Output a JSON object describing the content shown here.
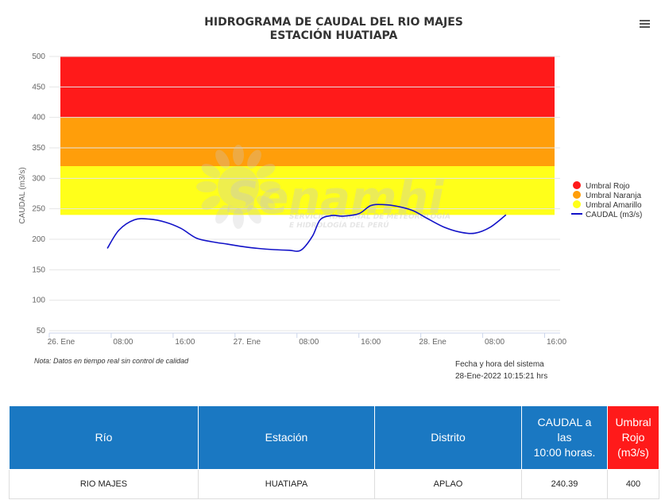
{
  "chart_data": {
    "type": "line",
    "title": "HIDROGRAMA DE CAUDAL DEL RIO MAJES",
    "subtitle": "ESTACIÓN HUATIAPA",
    "ylabel": "CAUDAL (m3/s)",
    "xlabel": "",
    "ylim": [
      50,
      500
    ],
    "yticks": [
      50,
      100,
      150,
      200,
      250,
      300,
      350,
      400,
      450,
      500
    ],
    "xlim": [
      0,
      66
    ],
    "xticks": [
      {
        "label": "26. Ene",
        "hour": 0
      },
      {
        "label": "08:00",
        "hour": 8
      },
      {
        "label": "16:00",
        "hour": 16
      },
      {
        "label": "27. Ene",
        "hour": 24
      },
      {
        "label": "08:00",
        "hour": 32
      },
      {
        "label": "16:00",
        "hour": 40
      },
      {
        "label": "28. Ene",
        "hour": 48
      },
      {
        "label": "08:00",
        "hour": 56
      },
      {
        "label": "16:00",
        "hour": 64
      }
    ],
    "bands": [
      {
        "name": "Umbral Rojo",
        "from": 400,
        "to": 500,
        "color": "#ff1a1a"
      },
      {
        "name": "Umbral Naranja",
        "from": 320,
        "to": 400,
        "color": "#ff9e0a"
      },
      {
        "name": "Umbral Amarillo",
        "from": 240,
        "to": 320,
        "color": "#ffff1a"
      }
    ],
    "series": [
      {
        "name": "CAUDAL (m3/s)",
        "color": "#1212c8",
        "points": [
          [
            7.5,
            185
          ],
          [
            9,
            215
          ],
          [
            11,
            232
          ],
          [
            13,
            233
          ],
          [
            15,
            228
          ],
          [
            17,
            218
          ],
          [
            19,
            202
          ],
          [
            21,
            196
          ],
          [
            23,
            192
          ],
          [
            25,
            188
          ],
          [
            27,
            185
          ],
          [
            29,
            183
          ],
          [
            31,
            182
          ],
          [
            32.5,
            182
          ],
          [
            34,
            205
          ],
          [
            35,
            232
          ],
          [
            36.5,
            239
          ],
          [
            38,
            238
          ],
          [
            40,
            242
          ],
          [
            41.5,
            255
          ],
          [
            43,
            257
          ],
          [
            45,
            254
          ],
          [
            47,
            247
          ],
          [
            49,
            233
          ],
          [
            51,
            220
          ],
          [
            53,
            212
          ],
          [
            55,
            210
          ],
          [
            57,
            220
          ],
          [
            59,
            240
          ]
        ]
      }
    ],
    "legend_position": "right",
    "grid": true,
    "watermark": {
      "brand": "Senamhi",
      "line1": "SERVICIO NACIONAL DE METEOROLOGÍA",
      "line2": "E HIDROLOGÍA DEL PERÚ"
    }
  },
  "note": "Nota: Datos en tiempo real sin control de calidad",
  "system_time": {
    "label": "Fecha y hora del sistema",
    "value": "28-Ene-2022 10:15:21 hrs"
  },
  "table": {
    "headers": {
      "rio": "Río",
      "estacion": "Estación",
      "distrito": "Distrito",
      "caudal_l1": "CAUDAL a",
      "caudal_l2": "las",
      "caudal_l3": "10:00 horas.",
      "umbral_l1": "Umbral Rojo",
      "umbral_l2": "(m3/s)"
    },
    "row": {
      "rio": "RIO MAJES",
      "estacion": "HUATIAPA",
      "distrito": "APLAO",
      "caudal": "240.39",
      "umbral": "400"
    }
  }
}
